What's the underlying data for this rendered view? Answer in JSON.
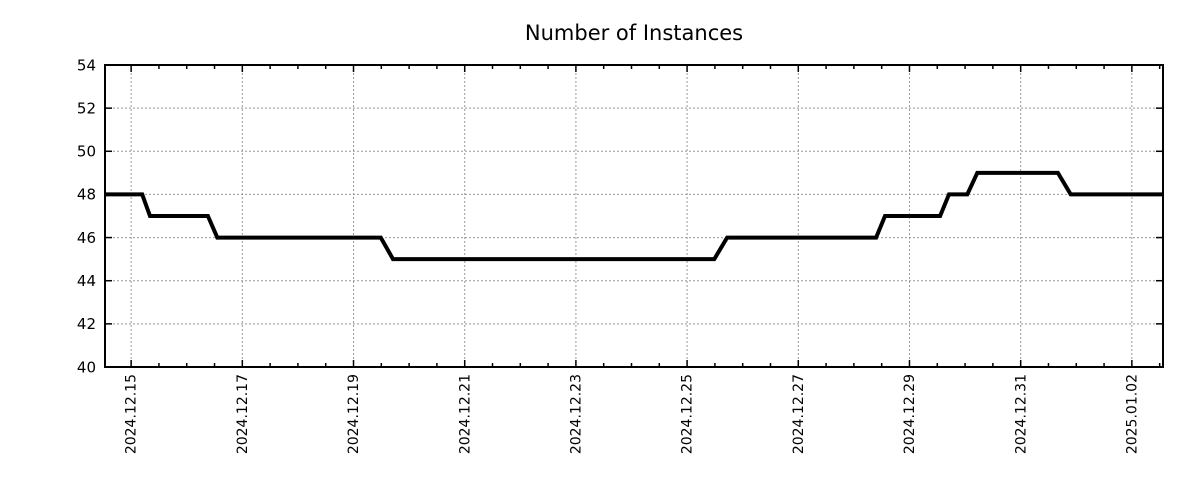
{
  "chart_data": {
    "type": "line",
    "title": "Number of Instances",
    "x_axis": {
      "tick_labels": [
        "2024.12.15",
        "2024.12.17",
        "2024.12.19",
        "2024.12.21",
        "2024.12.23",
        "2024.12.25",
        "2024.12.27",
        "2024.12.29",
        "2024.12.31",
        "2025.01.02"
      ],
      "tick_positions_days": [
        0,
        2,
        4,
        6,
        8,
        10,
        12,
        14,
        16,
        18
      ],
      "range_days": [
        -0.47,
        18.56
      ],
      "minor_tick_interval_days": 0.5
    },
    "y_axis": {
      "ticks": [
        40,
        42,
        44,
        46,
        48,
        50,
        52,
        54
      ],
      "range": [
        40,
        54
      ]
    },
    "grid": {
      "show": true,
      "color": "#999999",
      "style": "dashed"
    },
    "legend": {
      "show": false
    },
    "line": {
      "color": "#000000",
      "width": 4
    },
    "axis_color": "#000000",
    "title_color": "#1a1a1a",
    "series": [
      {
        "name": "Number of Instances",
        "plateau_values": [
          48,
          47,
          46,
          45,
          46,
          47,
          48,
          49,
          48
        ],
        "points_day_value": [
          [
            -0.47,
            48
          ],
          [
            0.2,
            48
          ],
          [
            0.34,
            47
          ],
          [
            1.38,
            47
          ],
          [
            1.55,
            46
          ],
          [
            4.49,
            46
          ],
          [
            4.71,
            45
          ],
          [
            10.49,
            45
          ],
          [
            10.72,
            46
          ],
          [
            13.4,
            46
          ],
          [
            13.56,
            47
          ],
          [
            14.55,
            47
          ],
          [
            14.71,
            48
          ],
          [
            15.04,
            48
          ],
          [
            15.22,
            49
          ],
          [
            16.67,
            49
          ],
          [
            16.9,
            48
          ],
          [
            18.56,
            48
          ]
        ]
      }
    ]
  }
}
